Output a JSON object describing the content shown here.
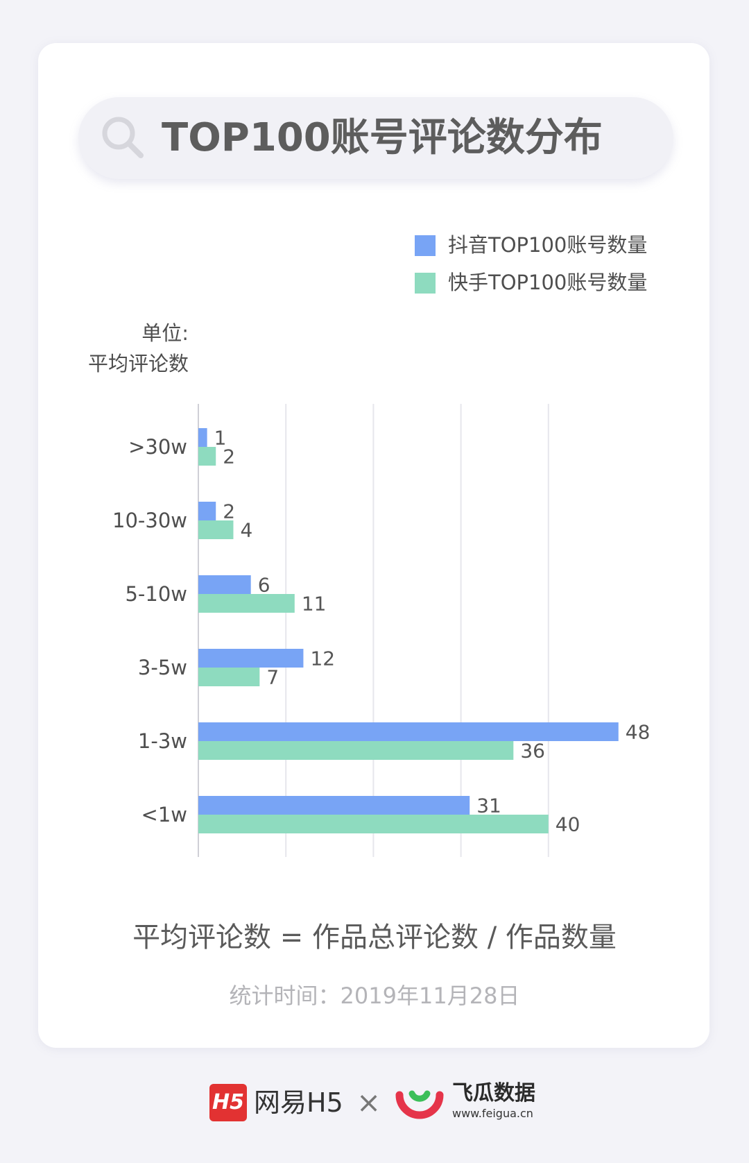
{
  "title": "TOP100账号评论数分布",
  "unit": {
    "line1": "单位:",
    "line2": "平均评论数"
  },
  "formula": "平均评论数 = 作品总评论数 / 作品数量",
  "stat_date": "统计时间：2019年11月28日",
  "footer": {
    "h5_logo_text": "H5",
    "netease": "网易H5",
    "cross": "×",
    "feigua_name": "飞瓜数据",
    "feigua_url": "www.feigua.cn"
  },
  "icons": {
    "search": "search-icon",
    "cross": "cross-icon",
    "feigua_logo": "feigua-logo-icon"
  },
  "chart_data": {
    "type": "bar",
    "orientation": "horizontal",
    "title": "TOP100账号评论数分布",
    "categories": [
      ">30w",
      "10-30w",
      "5-10w",
      "3-5w",
      "1-3w",
      "<1w"
    ],
    "series": [
      {
        "name": "抖音TOP100账号数量",
        "color": "#78a4f5",
        "values": [
          1,
          2,
          6,
          12,
          48,
          31
        ]
      },
      {
        "name": "快手TOP100账号数量",
        "color": "#8edbbf",
        "values": [
          2,
          4,
          11,
          7,
          36,
          40
        ]
      }
    ],
    "xlim": [
      0,
      50
    ],
    "grid": true,
    "legend_position": "top-right",
    "data_labels": true
  }
}
